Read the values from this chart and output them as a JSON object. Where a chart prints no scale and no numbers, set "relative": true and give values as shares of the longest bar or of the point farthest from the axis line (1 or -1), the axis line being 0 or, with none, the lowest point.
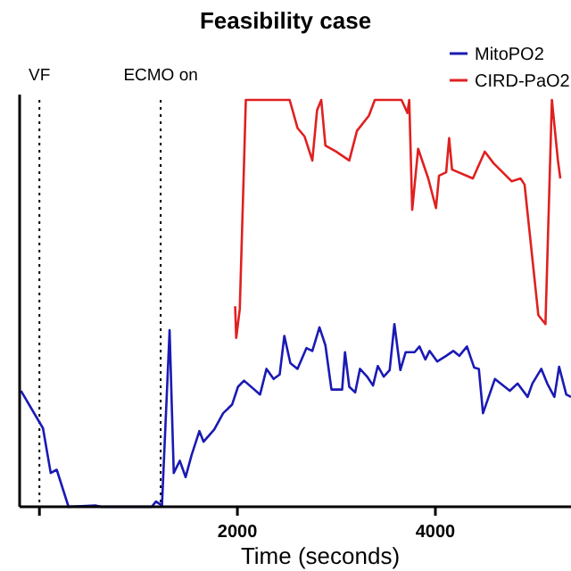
{
  "chart_data": {
    "type": "line",
    "title": "Feasibility case",
    "xlabel": "Time (seconds)",
    "relative": true,
    "tick_labels": "x",
    "xlim": [
      -200,
      5370
    ],
    "xticks": [
      {
        "value": 0,
        "label": null
      },
      2000,
      4000
    ],
    "legend": "top right",
    "line_style": "solid",
    "marker": "none",
    "grid": false,
    "ref_lines": [
      {
        "axis": "x",
        "value": 0,
        "label": "VF",
        "line_style": "dotted",
        "color": "#000000"
      },
      {
        "axis": "x",
        "value": 1225,
        "label": "ECMO on",
        "line_style": "dotted",
        "color": "#000000"
      }
    ],
    "series": [
      {
        "name": "MitoPO2",
        "color": "#1a1ab4",
        "x": [
          -186,
          36,
          114,
          175,
          294,
          564,
          625,
          1135,
          1177,
          1238,
          1315,
          1357,
          1418,
          1477,
          1537,
          1616,
          1658,
          1766,
          1856,
          1946,
          2006,
          2067,
          2229,
          2294,
          2366,
          2427,
          2474,
          2535,
          2607,
          2697,
          2757,
          2829,
          2889,
          2950,
          3058,
          3087,
          3130,
          3190,
          3238,
          3310,
          3370,
          3418,
          3478,
          3538,
          3586,
          3646,
          3700,
          3790,
          3839,
          3899,
          3941,
          4019,
          4109,
          4181,
          4241,
          4319,
          4392,
          4439,
          4481,
          4601,
          4752,
          4830,
          4932,
          4980,
          5070,
          5130,
          5202,
          5250,
          5322,
          5370
        ],
        "values": [
          0.285,
          0.193,
          0.083,
          0.091,
          0,
          0.003,
          0,
          0,
          0.013,
          0.003,
          0.434,
          0.083,
          0.113,
          0.073,
          0.127,
          0.186,
          0.16,
          0.19,
          0.23,
          0.251,
          0.295,
          0.31,
          0.276,
          0.339,
          0.314,
          0.325,
          0.42,
          0.353,
          0.339,
          0.39,
          0.383,
          0.441,
          0.397,
          0.288,
          0.288,
          0.38,
          0.295,
          0.281,
          0.339,
          0.32,
          0.298,
          0.346,
          0.32,
          0.336,
          0.449,
          0.336,
          0.38,
          0.38,
          0.394,
          0.362,
          0.383,
          0.357,
          0.371,
          0.383,
          0.371,
          0.394,
          0.342,
          0.339,
          0.23,
          0.314,
          0.285,
          0.303,
          0.27,
          0.303,
          0.339,
          0.303,
          0.27,
          0.344,
          0.276,
          0.27
        ]
      },
      {
        "name": "CIRD-PaO2",
        "color": "#e02020",
        "x": [
          1977,
          1988,
          2024,
          2067,
          2085,
          2528,
          2607,
          2679,
          2757,
          2805,
          2847,
          2889,
          2997,
          3130,
          3208,
          3328,
          3388,
          3658,
          3718,
          3736,
          3766,
          3826,
          3928,
          4006,
          4037,
          4109,
          4139,
          4168,
          4379,
          4499,
          4589,
          4770,
          4860,
          4901,
          5040,
          5112,
          5177,
          5238,
          5262
        ],
        "values": [
          0.493,
          0.415,
          0.486,
          0.844,
          1,
          1,
          0.931,
          0.91,
          0.851,
          0.975,
          1,
          0.888,
          0.873,
          0.851,
          0.924,
          0.961,
          1,
          1,
          0.968,
          1,
          0.73,
          0.88,
          0.807,
          0.734,
          0.814,
          0.822,
          0.906,
          0.829,
          0.807,
          0.873,
          0.844,
          0.8,
          0.807,
          0.792,
          0.471,
          0.449,
          1,
          0.851,
          0.807
        ]
      }
    ]
  }
}
